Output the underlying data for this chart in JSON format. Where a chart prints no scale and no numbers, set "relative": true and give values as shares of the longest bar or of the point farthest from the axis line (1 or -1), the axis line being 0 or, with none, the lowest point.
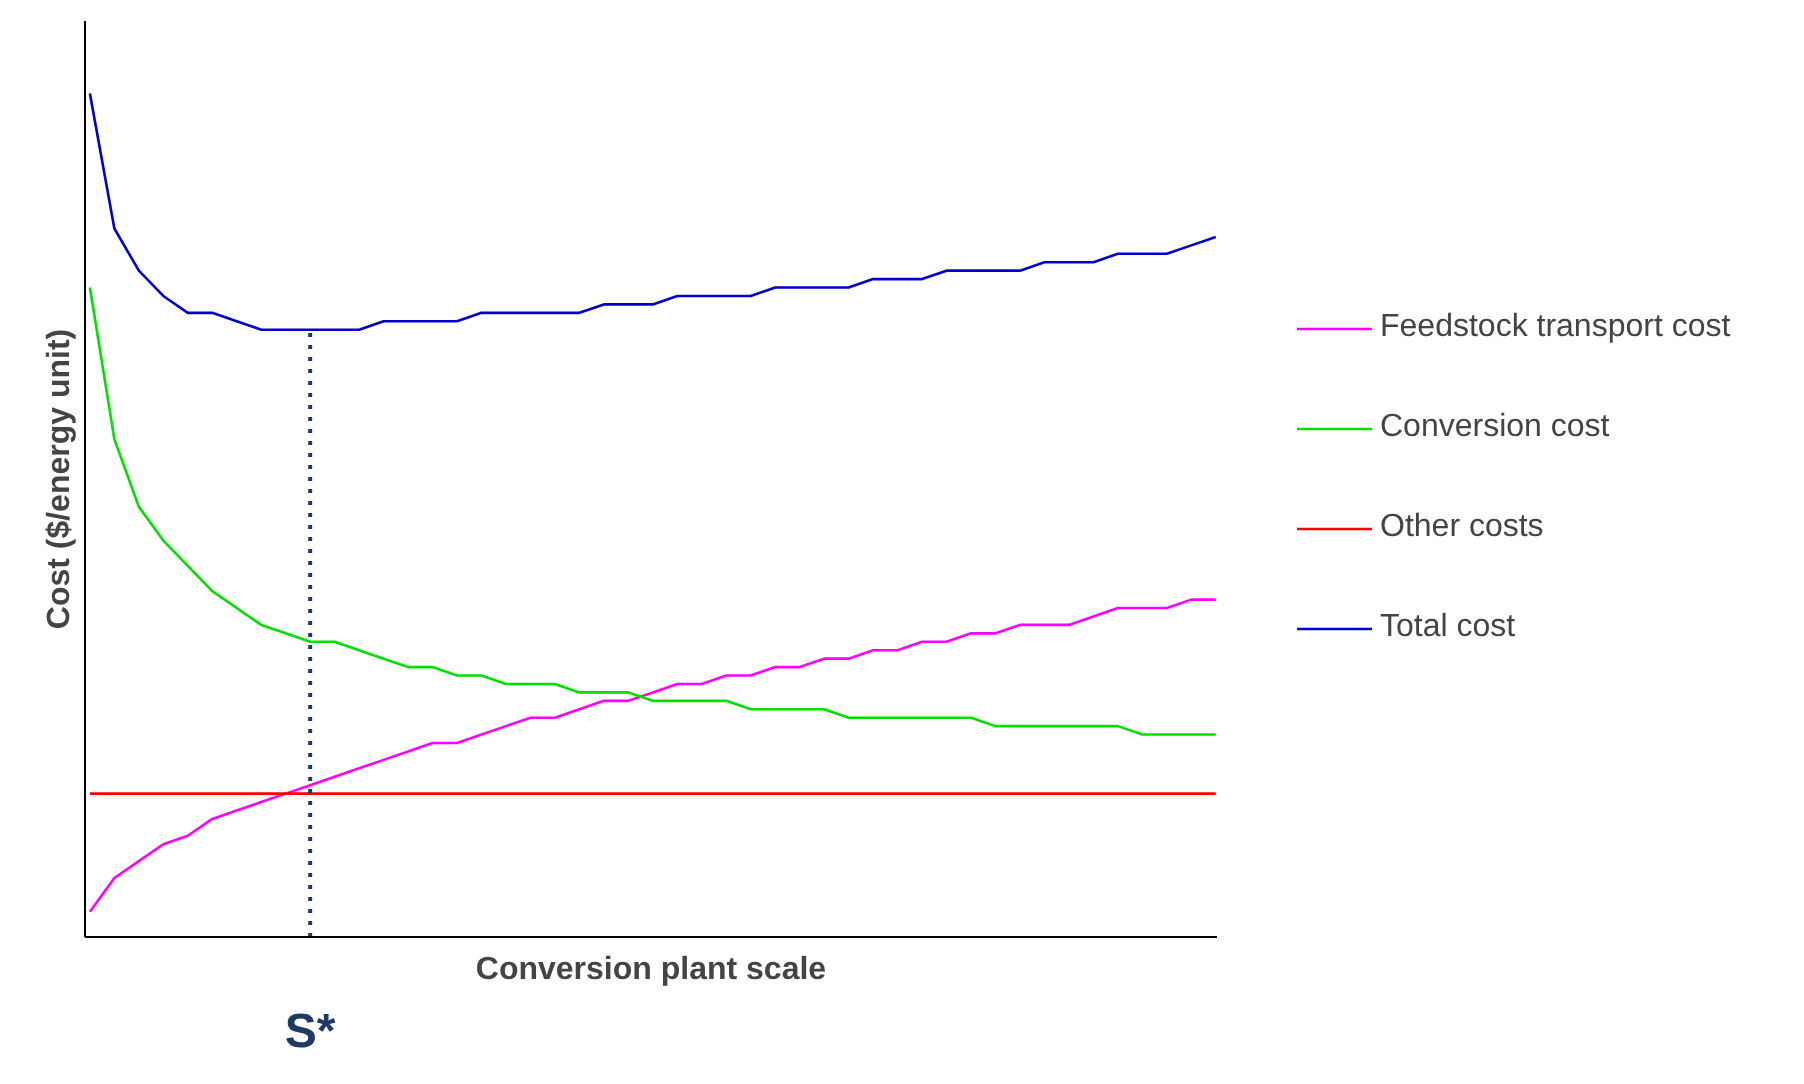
{
  "chart_data": {
    "type": "line",
    "relative": true,
    "xlabel": "Conversion plant scale",
    "ylabel": "Cost ($/energy unit)",
    "categories": [
      null,
      null,
      null,
      null,
      null,
      null,
      null,
      null,
      null,
      null,
      null,
      null,
      null,
      null,
      null,
      null,
      null,
      null,
      null,
      null,
      null,
      null,
      null,
      null,
      null,
      null,
      null,
      null,
      null,
      null,
      null,
      null,
      null,
      null,
      null,
      null,
      null,
      null,
      null,
      null,
      null,
      null,
      null,
      null,
      null,
      null,
      null
    ],
    "series": [
      {
        "name": "Feedstock transport cost",
        "color": "#ff00ff",
        "values": [
          0.03,
          0.07,
          0.09,
          0.11,
          0.12,
          0.14,
          0.15,
          0.16,
          0.17,
          0.18,
          0.19,
          0.2,
          0.21,
          0.22,
          0.23,
          0.23,
          0.24,
          0.25,
          0.26,
          0.26,
          0.27,
          0.28,
          0.28,
          0.29,
          0.3,
          0.3,
          0.31,
          0.31,
          0.32,
          0.32,
          0.33,
          0.33,
          0.34,
          0.34,
          0.35,
          0.35,
          0.36,
          0.36,
          0.37,
          0.37,
          0.37,
          0.38,
          0.39,
          0.39,
          0.39,
          0.4,
          0.4
        ]
      },
      {
        "name": "Conversion cost",
        "color": "#00e000",
        "values": [
          0.77,
          0.59,
          0.51,
          0.47,
          0.44,
          0.41,
          0.39,
          0.37,
          0.36,
          0.35,
          0.35,
          0.34,
          0.33,
          0.32,
          0.32,
          0.31,
          0.31,
          0.3,
          0.3,
          0.3,
          0.29,
          0.29,
          0.29,
          0.28,
          0.28,
          0.28,
          0.28,
          0.27,
          0.27,
          0.27,
          0.27,
          0.26,
          0.26,
          0.26,
          0.26,
          0.26,
          0.26,
          0.25,
          0.25,
          0.25,
          0.25,
          0.25,
          0.25,
          0.24,
          0.24,
          0.24,
          0.24
        ]
      },
      {
        "name": "Other costs",
        "color": "#ff0000",
        "values": [
          0.17,
          0.17,
          0.17,
          0.17,
          0.17,
          0.17,
          0.17,
          0.17,
          0.17,
          0.17,
          0.17,
          0.17,
          0.17,
          0.17,
          0.17,
          0.17,
          0.17,
          0.17,
          0.17,
          0.17,
          0.17,
          0.17,
          0.17,
          0.17,
          0.17,
          0.17,
          0.17,
          0.17,
          0.17,
          0.17,
          0.17,
          0.17,
          0.17,
          0.17,
          0.17,
          0.17,
          0.17,
          0.17,
          0.17,
          0.17,
          0.17,
          0.17,
          0.17,
          0.17,
          0.17,
          0.17,
          0.17
        ]
      },
      {
        "name": "Total cost",
        "color": "#0000cc",
        "values": [
          1.0,
          0.84,
          0.79,
          0.76,
          0.74,
          0.74,
          0.73,
          0.72,
          0.72,
          0.72,
          0.72,
          0.72,
          0.73,
          0.73,
          0.73,
          0.73,
          0.74,
          0.74,
          0.74,
          0.74,
          0.74,
          0.75,
          0.75,
          0.75,
          0.76,
          0.76,
          0.76,
          0.76,
          0.77,
          0.77,
          0.77,
          0.77,
          0.78,
          0.78,
          0.78,
          0.79,
          0.79,
          0.79,
          0.79,
          0.8,
          0.8,
          0.8,
          0.81,
          0.81,
          0.81,
          0.82,
          0.83
        ]
      }
    ],
    "annotations": [
      "S*"
    ],
    "legend": "right",
    "tick_labels": false
  }
}
